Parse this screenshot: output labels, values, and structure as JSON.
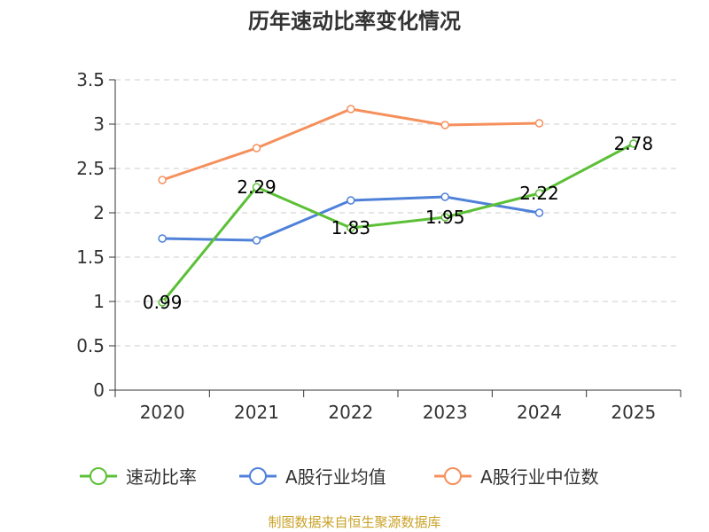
{
  "chart_data": {
    "type": "line",
    "title": "历年速动比率变化情况",
    "categories": [
      "2020",
      "2021",
      "2022",
      "2023",
      "2024",
      "2025"
    ],
    "ylim": [
      0,
      3.5
    ],
    "yticks": [
      "0",
      "0.5",
      "1",
      "1.5",
      "2",
      "2.5",
      "3",
      "3.5"
    ],
    "grid": true,
    "legend_position": "bottom",
    "series": [
      {
        "name": "速动比率",
        "color": "#5cc037",
        "values": [
          0.99,
          2.29,
          1.83,
          1.95,
          2.22,
          2.78
        ],
        "labels": [
          "0.99",
          "2.29",
          "1.83",
          "1.95",
          "2.22",
          "2.78"
        ]
      },
      {
        "name": "A股行业均值",
        "color": "#4f81d9",
        "values": [
          1.71,
          1.69,
          2.14,
          2.18,
          2.0,
          null
        ]
      },
      {
        "name": "A股行业中位数",
        "color": "#f5905c",
        "values": [
          2.37,
          2.73,
          3.17,
          2.99,
          3.01,
          null
        ]
      }
    ],
    "source": "制图数据来自恒生聚源数据库"
  }
}
